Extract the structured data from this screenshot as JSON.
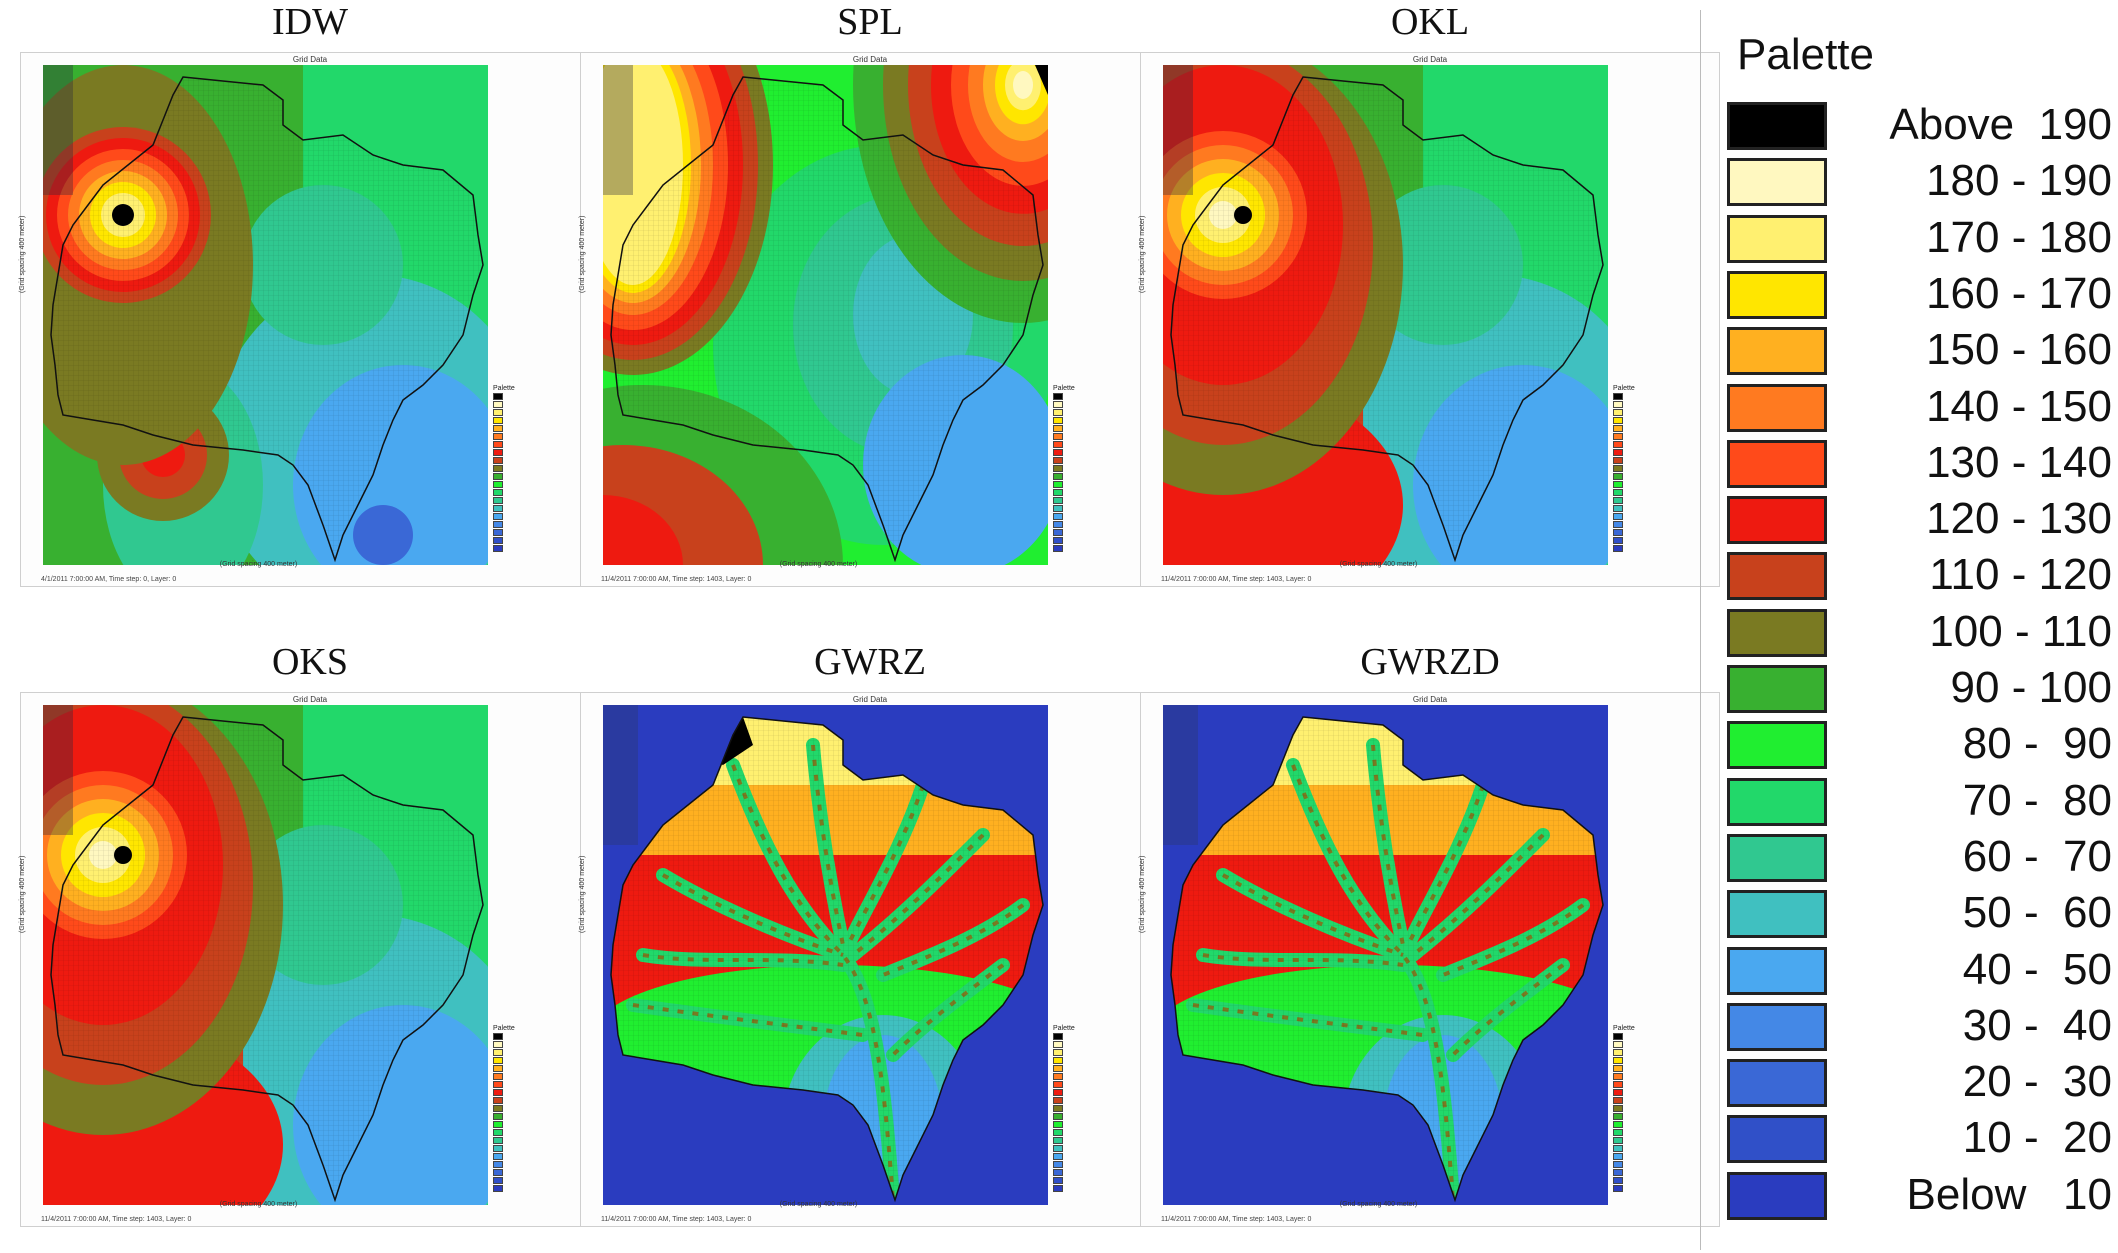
{
  "panels": [
    {
      "title": "IDW",
      "window_title": "Grid Data",
      "footer": "4/1/2011 7:00:00 AM, Time step: 0, Layer: 0"
    },
    {
      "title": "SPL",
      "window_title": "Grid Data",
      "footer": "11/4/2011 7:00:00 AM, Time step: 1403, Layer: 0"
    },
    {
      "title": "OKL",
      "window_title": "Grid Data",
      "footer": "11/4/2011 7:00:00 AM, Time step: 1403, Layer: 0"
    },
    {
      "title": "OKS",
      "window_title": "Grid Data",
      "footer": "11/4/2011 7:00:00 AM, Time step: 1403, Layer: 0"
    },
    {
      "title": "GWRZ",
      "window_title": "Grid Data",
      "footer": "11/4/2011 7:00:00 AM, Time step: 1403, Layer: 0"
    },
    {
      "title": "GWRZD",
      "window_title": "Grid Data",
      "footer": "11/4/2011 7:00:00 AM, Time step: 1403, Layer: 0"
    }
  ],
  "axis": {
    "x_label": "(Grid spacing 400 meter)",
    "y_label": "(Grid spacing 400 meter)"
  },
  "mini_legend_title": "Palette",
  "legend": {
    "title": "Palette",
    "entries": [
      {
        "label": "Above  190",
        "color": "#000000"
      },
      {
        "label": "180 - 190",
        "color": "#fff8c0"
      },
      {
        "label": "170 - 180",
        "color": "#fff070"
      },
      {
        "label": "160 - 170",
        "color": "#ffe600"
      },
      {
        "label": "150 - 160",
        "color": "#ffb020"
      },
      {
        "label": "140 - 150",
        "color": "#ff7a20"
      },
      {
        "label": "130 - 140",
        "color": "#ff4a1a"
      },
      {
        "label": "120 - 130",
        "color": "#ee1a10"
      },
      {
        "label": "110 - 120",
        "color": "#c8411c"
      },
      {
        "label": "100 - 110",
        "color": "#7a7a22"
      },
      {
        "label": " 90 - 100",
        "color": "#38b030"
      },
      {
        "label": " 80 -  90",
        "color": "#20ee30"
      },
      {
        "label": " 70 -  80",
        "color": "#22d86a"
      },
      {
        "label": " 60 -  70",
        "color": "#30c890"
      },
      {
        "label": " 50 -  60",
        "color": "#40c0c0"
      },
      {
        "label": " 40 -  50",
        "color": "#4aa8f0"
      },
      {
        "label": " 30 -  40",
        "color": "#4488e6"
      },
      {
        "label": " 20 -  30",
        "color": "#3a68d6"
      },
      {
        "label": " 10 -  20",
        "color": "#3050c8"
      },
      {
        "label": "Below   10",
        "color": "#2a3cbf"
      }
    ]
  }
}
